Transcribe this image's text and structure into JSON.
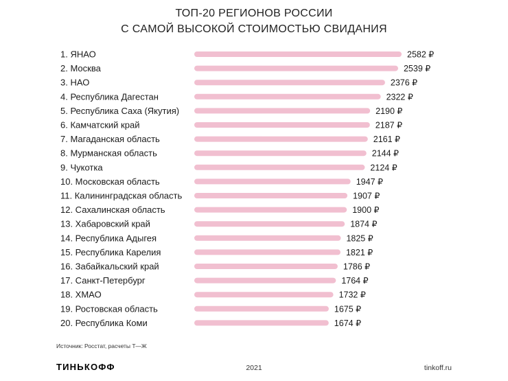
{
  "title_lines": [
    "ТОП-20 РЕГИОНОВ РОССИИ",
    "С САМОЙ ВЫСОКОЙ СТОИМОСТЬЮ СВИДАНИЯ"
  ],
  "chart_data": {
    "type": "bar",
    "orientation": "horizontal",
    "bar_color": "#f1bfd0",
    "value_suffix": " ₽",
    "categories": [
      "1. ЯНАО",
      "2. Москва",
      "3. НАО",
      "4. Республика Дагестан",
      "5. Республика Саха (Якутия)",
      "6. Камчатский край",
      "7. Магаданская область",
      "8. Мурманская область",
      "9. Чукотка",
      "10. Московская область",
      "11. Калининградская область",
      "12. Сахалинская область",
      "13. Хабаровский край",
      "14. Республика Адыгея",
      "15. Республика Карелия",
      "16. Забайкальский край",
      "17. Санкт-Петербург",
      "18. ХМАО",
      "19. Ростовская область",
      "20. Республика Коми"
    ],
    "values": [
      2582,
      2539,
      2376,
      2322,
      2190,
      2187,
      2161,
      2144,
      2124,
      1947,
      1907,
      1900,
      1874,
      1825,
      1821,
      1786,
      1764,
      1732,
      1675,
      1674
    ],
    "value_labels": [
      "2582 ₽",
      "2539 ₽",
      "2376 ₽",
      "2322 ₽",
      "2190 ₽",
      "2187 ₽",
      "2161 ₽",
      "2144 ₽",
      "2124 ₽",
      "1947 ₽",
      "1907 ₽",
      "1900 ₽",
      "1874 ₽",
      "1825 ₽",
      "1821 ₽",
      "1786 ₽",
      "1764 ₽",
      "1732 ₽",
      "1675 ₽",
      "1674 ₽"
    ],
    "xlim": [
      0,
      2582
    ],
    "grid": false,
    "legend": "none"
  },
  "source": "Источник: Росстат, расчеты Т—Ж",
  "footer": {
    "brand": "ТИНЬКОФФ",
    "year": "2021",
    "site": "tinkoff.ru"
  }
}
